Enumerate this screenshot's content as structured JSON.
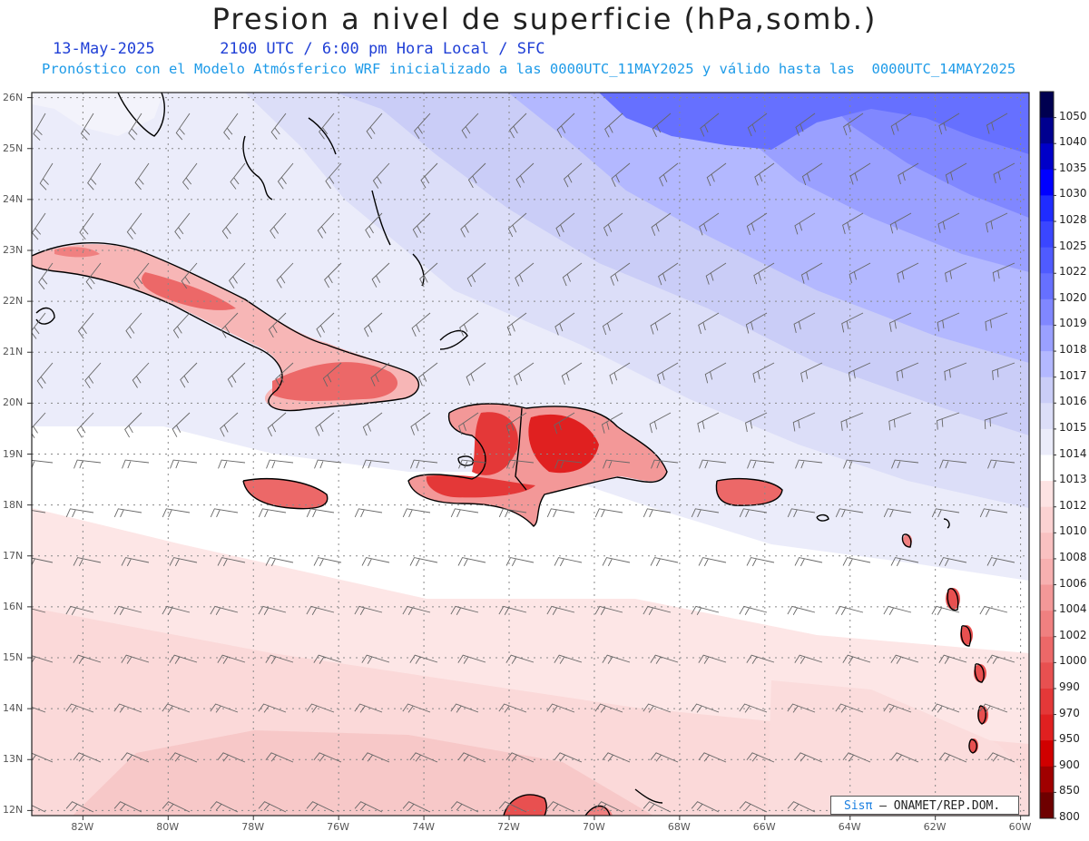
{
  "header": {
    "title": "Presion a nivel de superficie (hPa,somb.)",
    "date": "13-May-2025",
    "time_info": "2100 UTC / 6:00 pm Hora Local / SFC",
    "forecast_info": "Pronóstico con el Modelo Atmósferico WRF inicializado a las 0000UTC_11MAY2025 y válido hasta las  0000UTC_14MAY2025"
  },
  "map": {
    "lon_range": [
      -83.2,
      -59.8
    ],
    "lat_range": [
      11.9,
      26.1
    ],
    "lon_ticks": [
      "82W",
      "80W",
      "78W",
      "76W",
      "74W",
      "72W",
      "70W",
      "68W",
      "66W",
      "64W",
      "62W",
      "60W"
    ],
    "lat_ticks": [
      "26N",
      "25N",
      "24N",
      "23N",
      "22N",
      "21N",
      "20N",
      "19N",
      "18N",
      "17N",
      "16N",
      "15N",
      "14N",
      "13N",
      "12N"
    ]
  },
  "colorbar": {
    "levels": [
      "1050",
      "1040",
      "1035",
      "1030",
      "1028",
      "1025",
      "1022",
      "1020",
      "1019",
      "1018",
      "1017",
      "1016",
      "1015",
      "1014",
      "1013",
      "1012",
      "1010",
      "1008",
      "1006",
      "1004",
      "1002",
      "1000",
      "990",
      "970",
      "950",
      "900",
      "850",
      "800"
    ],
    "colors": [
      "#000050",
      "#00008f",
      "#0000c8",
      "#0000ff",
      "#1f2cff",
      "#3a46ff",
      "#4f5bff",
      "#6670ff",
      "#8087ff",
      "#9aa0ff",
      "#b3b8ff",
      "#cacdf7",
      "#dcdef8",
      "#ebecfa",
      "#ffffff",
      "#fde3e3",
      "#fbd2d2",
      "#f9c1c1",
      "#f7b0b0",
      "#f39898",
      "#f08080",
      "#ec6868",
      "#e85050",
      "#e43838",
      "#e02020",
      "#d00000",
      "#a00000",
      "#6e0000"
    ]
  },
  "credit": {
    "logo": "Sisπ",
    "text": " – ONAMET/REP.DOM."
  }
}
